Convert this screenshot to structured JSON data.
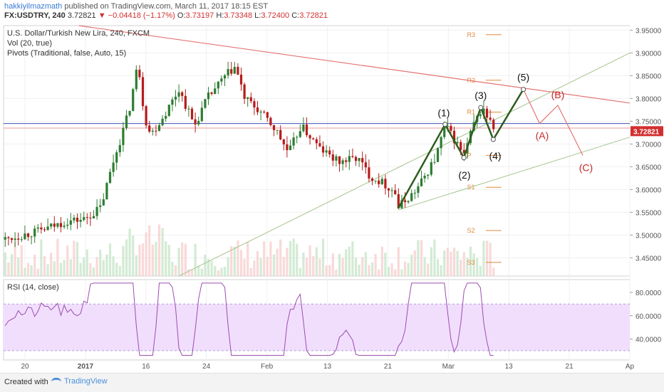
{
  "header": {
    "author": "hakkiyilmazmath",
    "published_text": "published on TradingView.com, March 11, 2017 18:15 EST",
    "symbol": "FX:USDTRY, 240",
    "last": "3.72821",
    "arrow": "▼",
    "change": "−0.04418 (−1.17%)",
    "o_label": "O:",
    "o_val": "3.73197",
    "h_label": "H:",
    "h_val": "3.73348",
    "l_label": "L:",
    "l_val": "3.72400",
    "c_label": "C:",
    "c_val": "3.72821"
  },
  "legend": {
    "title": "U.S. Dollar/Turkish New Lira, 240, FXCM",
    "vol": "Vol (20, true)",
    "pivots": "Pivots (Traditional, false, Auto, 15)",
    "rsi": "RSI (14, close)"
  },
  "footer": {
    "created_with": "Created with",
    "brand": "TradingView"
  },
  "colors": {
    "up": "#2e7d32",
    "down": "#b71c1c",
    "wave": "#2e5e1e",
    "corrective": "#e57373",
    "price_line": "#d32f2f",
    "blue_line": "#3f51b5",
    "rsi": "#9c4db0",
    "rsi_band": "#f1defc",
    "pivot": "#e08a3c",
    "trend_red": "#e57373",
    "trend_green": "#a5c48d"
  },
  "chart_data": [
    {
      "type": "candlestick",
      "title": "U.S. Dollar/Turkish New Lira, 240, FXCM",
      "y_axis_ticks": [
        "3.95000",
        "3.90000",
        "3.85000",
        "3.80000",
        "3.75000",
        "3.70000",
        "3.65000",
        "3.60000",
        "3.55000",
        "3.50000",
        "3.45000"
      ],
      "ylim": [
        3.41,
        3.96
      ],
      "x_axis_ticks": [
        "20",
        "2017",
        "16",
        "24",
        "Feb",
        "13",
        "21",
        "Mar",
        "13",
        "21",
        "Ap"
      ],
      "last_price_label": "3.72821",
      "close_path": [
        {
          "t": 0.0,
          "v": 3.49
        },
        {
          "t": 0.06,
          "v": 3.51
        },
        {
          "t": 0.1,
          "v": 3.53
        },
        {
          "t": 0.13,
          "v": 3.535
        },
        {
          "t": 0.155,
          "v": 3.56
        },
        {
          "t": 0.175,
          "v": 3.66
        },
        {
          "t": 0.2,
          "v": 3.77
        },
        {
          "t": 0.215,
          "v": 3.88
        },
        {
          "t": 0.225,
          "v": 3.76
        },
        {
          "t": 0.235,
          "v": 3.72
        },
        {
          "t": 0.255,
          "v": 3.76
        },
        {
          "t": 0.28,
          "v": 3.82
        },
        {
          "t": 0.305,
          "v": 3.74
        },
        {
          "t": 0.325,
          "v": 3.8
        },
        {
          "t": 0.355,
          "v": 3.85
        },
        {
          "t": 0.37,
          "v": 3.87
        },
        {
          "t": 0.385,
          "v": 3.8
        },
        {
          "t": 0.41,
          "v": 3.77
        },
        {
          "t": 0.435,
          "v": 3.73
        },
        {
          "t": 0.455,
          "v": 3.68
        },
        {
          "t": 0.475,
          "v": 3.74
        },
        {
          "t": 0.505,
          "v": 3.69
        },
        {
          "t": 0.535,
          "v": 3.66
        },
        {
          "t": 0.565,
          "v": 3.67
        },
        {
          "t": 0.585,
          "v": 3.63
        },
        {
          "t": 0.605,
          "v": 3.615
        },
        {
          "t": 0.625,
          "v": 3.595
        },
        {
          "t": 0.63,
          "v": 3.56
        },
        {
          "t": 0.66,
          "v": 3.6
        },
        {
          "t": 0.69,
          "v": 3.67
        },
        {
          "t": 0.705,
          "v": 3.74
        },
        {
          "t": 0.72,
          "v": 3.71
        },
        {
          "t": 0.735,
          "v": 3.675
        },
        {
          "t": 0.75,
          "v": 3.74
        },
        {
          "t": 0.765,
          "v": 3.78
        },
        {
          "t": 0.78,
          "v": 3.74
        },
        {
          "t": 0.785,
          "v": 3.728
        }
      ],
      "pivot_levels": [
        {
          "label": "R3",
          "value": 3.94
        },
        {
          "label": "R2",
          "value": 3.84
        },
        {
          "label": "R1",
          "value": 3.77
        },
        {
          "label": "P",
          "value": 3.675
        },
        {
          "label": "S1",
          "value": 3.605
        },
        {
          "label": "S2",
          "value": 3.51
        },
        {
          "label": "S3",
          "value": 3.44
        }
      ],
      "wave_labels": [
        {
          "label": "(1)",
          "value": 3.745
        },
        {
          "label": "(2)",
          "value": 3.665
        },
        {
          "label": "(3)",
          "value": 3.78
        },
        {
          "label": "(4)",
          "value": 3.71
        },
        {
          "label": "(5)",
          "value": 3.82
        },
        {
          "label": "(A)",
          "value": 3.745
        },
        {
          "label": "(B)",
          "value": 3.785
        },
        {
          "label": "(C)",
          "value": 3.675
        }
      ],
      "horizontal_line": 3.745
    },
    {
      "type": "line",
      "title": "RSI (14, close)",
      "y_axis_ticks": [
        "80.0000",
        "60.0000",
        "40.0000"
      ],
      "ylim": [
        22,
        91
      ],
      "band": [
        30,
        70
      ]
    }
  ]
}
